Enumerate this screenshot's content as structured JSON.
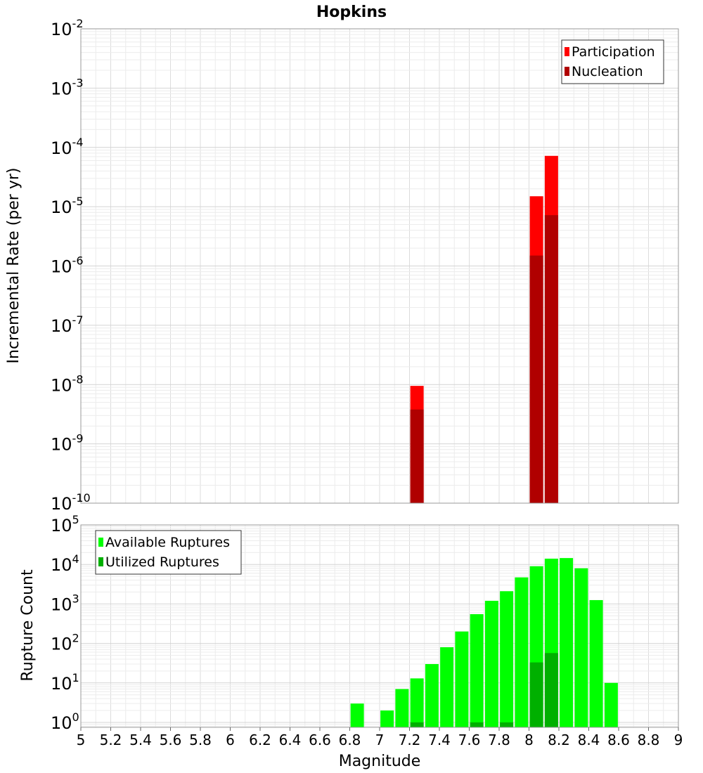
{
  "chart_data": [
    {
      "type": "bar",
      "title": "Hopkins",
      "ylabel": "Incremental Rate (per yr)",
      "y_scale": "log",
      "ylim": [
        1e-10,
        0.01
      ],
      "y_ticks": [
        {
          "base": "10",
          "exp": "-10"
        },
        {
          "base": "10",
          "exp": "-9"
        },
        {
          "base": "10",
          "exp": "-8"
        },
        {
          "base": "10",
          "exp": "-7"
        },
        {
          "base": "10",
          "exp": "-6"
        },
        {
          "base": "10",
          "exp": "-5"
        },
        {
          "base": "10",
          "exp": "-4"
        },
        {
          "base": "10",
          "exp": "-3"
        },
        {
          "base": "10",
          "exp": "-2"
        }
      ],
      "xlim": [
        5,
        9
      ],
      "grid": true,
      "legend_position": "top-right",
      "series": [
        {
          "name": "Participation",
          "color": "#ff0000",
          "points": [
            {
              "x": 7.25,
              "y": 9.5e-09
            },
            {
              "x": 8.05,
              "y": 1.5e-05
            },
            {
              "x": 8.15,
              "y": 7.2e-05
            }
          ]
        },
        {
          "name": "Nucleation",
          "color": "#b00000",
          "points": [
            {
              "x": 7.25,
              "y": 3.8e-09
            },
            {
              "x": 8.05,
              "y": 1.5e-06
            },
            {
              "x": 8.15,
              "y": 7.2e-06
            }
          ]
        }
      ]
    },
    {
      "type": "bar",
      "xlabel": "Magnitude",
      "ylabel": "Rupture Count",
      "y_scale": "log",
      "ylim": [
        0.75,
        100000.0
      ],
      "y_ticks": [
        {
          "base": "10",
          "exp": "0",
          "value": 1
        },
        {
          "base": "10",
          "exp": "1",
          "value": 10
        },
        {
          "base": "10",
          "exp": "2",
          "value": 100
        },
        {
          "base": "10",
          "exp": "3",
          "value": 1000
        },
        {
          "base": "10",
          "exp": "4",
          "value": 10000
        },
        {
          "base": "10",
          "exp": "5",
          "value": 100000
        }
      ],
      "xlim": [
        5,
        9
      ],
      "x_ticks": [
        "5",
        "5.2",
        "5.4",
        "5.6",
        "5.8",
        "6",
        "6.2",
        "6.4",
        "6.6",
        "6.8",
        "7",
        "7.2",
        "7.4",
        "7.6",
        "7.8",
        "8",
        "8.2",
        "8.4",
        "8.6",
        "8.8",
        "9"
      ],
      "grid": true,
      "legend_position": "top-left",
      "series": [
        {
          "name": "Available Ruptures",
          "color": "#00ff00",
          "points": [
            {
              "x": 6.85,
              "y": 3
            },
            {
              "x": 7.05,
              "y": 2
            },
            {
              "x": 7.15,
              "y": 7
            },
            {
              "x": 7.25,
              "y": 13
            },
            {
              "x": 7.35,
              "y": 30
            },
            {
              "x": 7.45,
              "y": 80
            },
            {
              "x": 7.55,
              "y": 200
            },
            {
              "x": 7.65,
              "y": 550
            },
            {
              "x": 7.75,
              "y": 1200
            },
            {
              "x": 7.85,
              "y": 2100
            },
            {
              "x": 7.95,
              "y": 4700
            },
            {
              "x": 8.05,
              "y": 9000
            },
            {
              "x": 8.15,
              "y": 14000
            },
            {
              "x": 8.25,
              "y": 14500
            },
            {
              "x": 8.35,
              "y": 8000
            },
            {
              "x": 8.45,
              "y": 1250
            },
            {
              "x": 8.55,
              "y": 10
            }
          ]
        },
        {
          "name": "Utilized Ruptures",
          "color": "#00b000",
          "points": [
            {
              "x": 7.25,
              "y": 1
            },
            {
              "x": 7.65,
              "y": 1
            },
            {
              "x": 7.85,
              "y": 1
            },
            {
              "x": 8.05,
              "y": 33
            },
            {
              "x": 8.15,
              "y": 57
            }
          ]
        }
      ]
    }
  ]
}
